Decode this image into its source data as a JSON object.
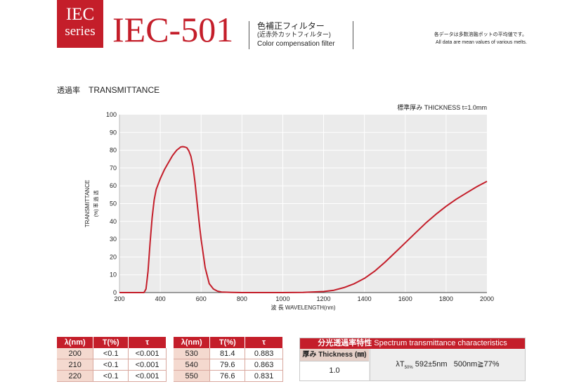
{
  "header": {
    "badge_line1": "IEC",
    "badge_line2": "series",
    "model": "IEC-501",
    "name_jp": "色補正フィルター",
    "name_jp_sub": "(近赤外カットフィルター)",
    "name_en": "Color compensation filter",
    "note_jp": "各データは多数溶融ポットの平均値です。",
    "note_en": "All data are mean values of various melts."
  },
  "section": {
    "title_jp": "透過率",
    "title_en": "TRANSMITTANCE"
  },
  "chart_data": {
    "type": "line",
    "thickness_note": "標準厚み THICKNESS t=1.0mm",
    "xlabel": "波 長 WAVELENGTH(nm)",
    "ylabel_en": "TRANSMITTANCE",
    "ylabel_jp": "(%) 率 過 透",
    "xlim": [
      200,
      2000
    ],
    "ylim": [
      0,
      100
    ],
    "x_ticks": [
      200,
      400,
      600,
      800,
      1000,
      1200,
      1400,
      1600,
      1800,
      2000
    ],
    "y_ticks": [
      0,
      10,
      20,
      30,
      40,
      50,
      60,
      70,
      80,
      90,
      100
    ],
    "grid": true,
    "series": [
      {
        "color": "#c41e2a",
        "x": [
          200,
          320,
          330,
          340,
          350,
          360,
          370,
          380,
          400,
          420,
          440,
          460,
          480,
          500,
          510,
          520,
          530,
          540,
          550,
          560,
          570,
          580,
          590,
          600,
          620,
          640,
          660,
          680,
          700,
          750,
          800,
          900,
          1000,
          1100,
          1200,
          1250,
          1300,
          1350,
          1400,
          1450,
          1500,
          1550,
          1600,
          1650,
          1700,
          1750,
          1800,
          1850,
          1900,
          1950,
          2000
        ],
        "y": [
          0,
          0,
          2,
          12,
          28,
          42,
          52,
          58,
          64,
          69,
          73,
          77,
          80,
          81.8,
          82,
          81.8,
          81.4,
          79.6,
          76.6,
          71,
          62,
          51,
          40,
          30,
          14,
          5,
          2,
          0.8,
          0.3,
          0.1,
          0,
          0,
          0,
          0.1,
          0.6,
          1.3,
          2.8,
          5,
          8,
          12,
          17,
          22.5,
          28,
          33.5,
          39,
          44,
          48.5,
          52.5,
          56,
          59.5,
          62.5
        ]
      }
    ]
  },
  "table1": {
    "headers": [
      "λ(nm)",
      "T(%)",
      "τ"
    ],
    "rows": [
      [
        "200",
        "<0.1",
        "<0.001"
      ],
      [
        "210",
        "<0.1",
        "<0.001"
      ],
      [
        "220",
        "<0.1",
        "<0.001"
      ]
    ]
  },
  "table2": {
    "headers": [
      "λ(nm)",
      "T(%)",
      "τ"
    ],
    "rows": [
      [
        "530",
        "81.4",
        "0.883"
      ],
      [
        "540",
        "79.6",
        "0.863"
      ],
      [
        "550",
        "76.6",
        "0.831"
      ]
    ]
  },
  "spec": {
    "title_jp": "分光透過率特性",
    "title_en": "Spectrum transmittance characteristics",
    "thickness_header": "厚み Thickness (㎜)",
    "thickness_value": "1.0",
    "value_prefix": "λT",
    "value_sub": "50%",
    "value_main": " 592±5nm",
    "value_extra": "500nm≧77%"
  }
}
